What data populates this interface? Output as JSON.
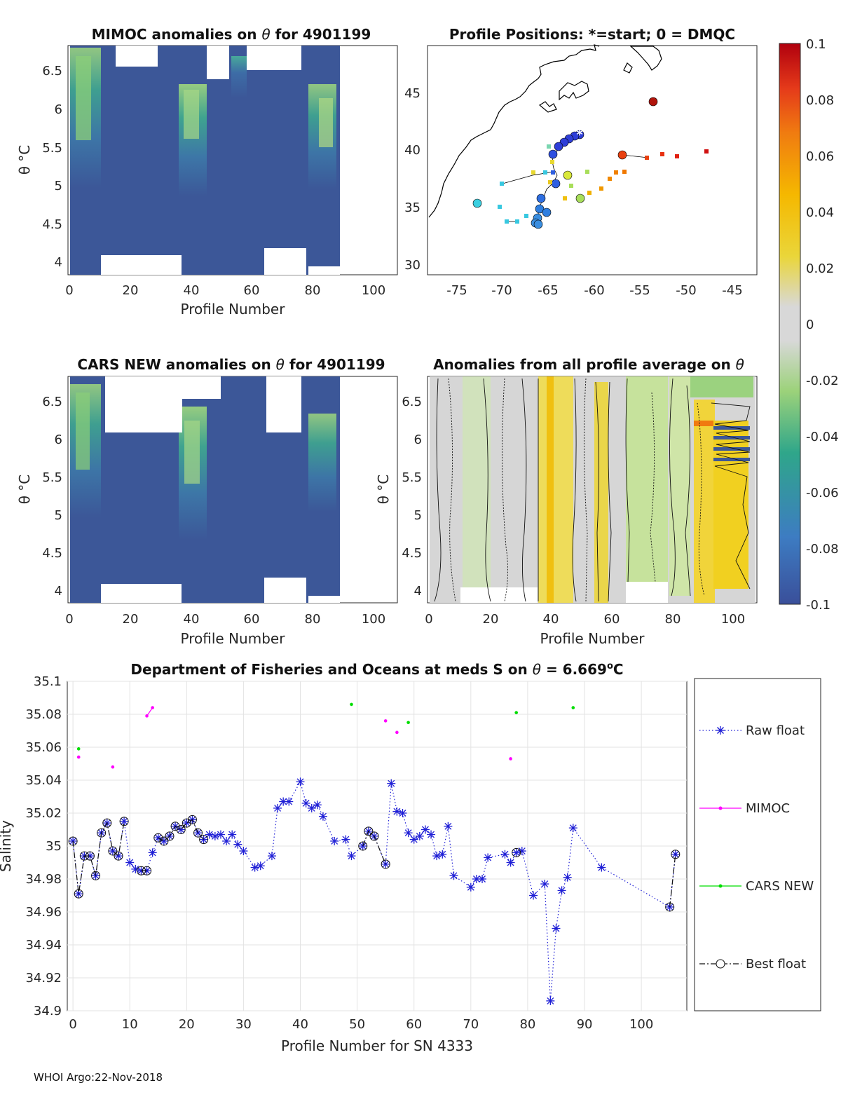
{
  "footer": "WHOI Argo:22-Nov-2018",
  "panels": {
    "mimoc": {
      "title_text": "MIMOC anomalies on ",
      "title_theta": "θ",
      "title_rest": " for 4901199",
      "xlabel": "Profile Number",
      "ylabel": "θ °C",
      "xticks": [
        "0",
        "20",
        "40",
        "60",
        "80",
        "100"
      ],
      "yticks": [
        "4",
        "4.5",
        "5",
        "5.5",
        "6",
        "6.5"
      ]
    },
    "positions": {
      "title": "Profile Positions: *=start; 0 = DMQC",
      "xticks": [
        "-75",
        "-70",
        "-65",
        "-60",
        "-55",
        "-50",
        "-45"
      ],
      "yticks": [
        "30",
        "35",
        "40",
        "45"
      ]
    },
    "cars": {
      "title_text": "CARS NEW anomalies on ",
      "title_theta": "θ",
      "title_rest": " for 4901199",
      "xlabel": "Profile Number",
      "ylabel": "θ °C",
      "xticks": [
        "0",
        "20",
        "40",
        "60",
        "80",
        "100"
      ],
      "yticks": [
        "4",
        "4.5",
        "5",
        "5.5",
        "6",
        "6.5"
      ]
    },
    "allavg": {
      "title_text": "Anomalies from all profile average on ",
      "title_theta": "θ",
      "xlabel": "Profile Number",
      "ylabel": "θ °C",
      "xticks": [
        "0",
        "20",
        "40",
        "60",
        "80",
        "100"
      ],
      "yticks": [
        "4",
        "4.5",
        "5",
        "5.5",
        "6",
        "6.5"
      ]
    }
  },
  "colorbar": {
    "ticks": [
      "0.1",
      "0.08",
      "0.06",
      "0.04",
      "0.02",
      "0",
      "-0.02",
      "-0.04",
      "-0.06",
      "-0.08",
      "-0.1"
    ]
  },
  "chart_data": {
    "type": "line",
    "title_prefix": "Department of Fisheries and Oceans at meds S on ",
    "title_theta": "θ",
    "title_value": " = 6.669",
    "title_sup": "o",
    "title_unit": "C",
    "xlabel": "Profile Number for SN 4333",
    "ylabel": "Salinity",
    "xlim": [
      -1,
      108
    ],
    "ylim": [
      34.9,
      35.1
    ],
    "xticks": [
      0,
      10,
      20,
      30,
      40,
      50,
      60,
      70,
      80,
      90,
      100
    ],
    "yticks": [
      34.9,
      34.92,
      34.94,
      34.96,
      34.98,
      35,
      35.02,
      35.04,
      35.06,
      35.08,
      35.1
    ],
    "grid": true,
    "legend": [
      "Raw float",
      "MIMOC",
      "CARS NEW",
      "Best float"
    ],
    "series": [
      {
        "name": "Raw float",
        "color": "#1f1fd6",
        "style": "dotted",
        "marker": "asterisk",
        "x": [
          0,
          1,
          2,
          3,
          4,
          5,
          6,
          7,
          8,
          9,
          10,
          11,
          12,
          13,
          14,
          15,
          16,
          17,
          18,
          19,
          20,
          21,
          22,
          23,
          24,
          25,
          26,
          27,
          28,
          29,
          30,
          32,
          33,
          35,
          36,
          37,
          38,
          40,
          41,
          42,
          43,
          44,
          46,
          48,
          49,
          51,
          52,
          53,
          55,
          56,
          57,
          58,
          59,
          60,
          61,
          62,
          63,
          64,
          65,
          66,
          67,
          70,
          71,
          72,
          73,
          76,
          77,
          78,
          79,
          81,
          83,
          84,
          85,
          86,
          87,
          88,
          93,
          105,
          106
        ],
        "y": [
          35.003,
          34.971,
          34.994,
          34.994,
          34.982,
          35.008,
          35.014,
          34.997,
          34.994,
          35.015,
          34.99,
          34.986,
          34.985,
          34.985,
          34.996,
          35.005,
          35.003,
          35.006,
          35.012,
          35.01,
          35.014,
          35.016,
          35.008,
          35.004,
          35.007,
          35.006,
          35.007,
          35.003,
          35.007,
          35.001,
          34.997,
          34.987,
          34.988,
          34.994,
          35.023,
          35.027,
          35.027,
          35.039,
          35.026,
          35.023,
          35.025,
          35.018,
          35.003,
          35.004,
          34.994,
          35.0,
          35.009,
          35.006,
          34.989,
          35.038,
          35.021,
          35.02,
          35.008,
          35.004,
          35.006,
          35.01,
          35.007,
          34.994,
          34.995,
          35.012,
          34.982,
          34.975,
          34.98,
          34.98,
          34.993,
          34.995,
          34.99,
          34.996,
          34.997,
          34.97,
          34.977,
          34.906,
          34.95,
          34.973,
          34.981,
          35.011,
          34.987,
          34.963,
          34.995
        ]
      },
      {
        "name": "MIMOC",
        "color": "#ff00ff",
        "style": "solid",
        "marker": "dot",
        "segments": [
          [
            [
              1,
              35.054
            ]
          ],
          [
            [
              7,
              35.048
            ]
          ],
          [
            [
              13,
              35.079
            ],
            [
              14,
              35.084
            ]
          ],
          [
            [
              55,
              35.076
            ]
          ],
          [
            [
              57,
              35.069
            ]
          ],
          [
            [
              77,
              35.053
            ]
          ]
        ]
      },
      {
        "name": "CARS NEW",
        "color": "#00dd00",
        "style": "solid",
        "marker": "dot",
        "segments": [
          [
            [
              1,
              35.059
            ]
          ],
          [
            [
              49,
              35.086
            ]
          ],
          [
            [
              59,
              35.075
            ]
          ],
          [
            [
              78,
              35.081
            ]
          ],
          [
            [
              88,
              35.084
            ]
          ]
        ]
      },
      {
        "name": "Best float",
        "color": "#111111",
        "style": "dashdot",
        "marker": "circle",
        "segments": [
          [
            [
              0,
              35.003
            ],
            [
              1,
              34.971
            ],
            [
              2,
              34.994
            ],
            [
              3,
              34.994
            ],
            [
              4,
              34.982
            ],
            [
              5,
              35.008
            ],
            [
              6,
              35.014
            ],
            [
              7,
              34.997
            ],
            [
              8,
              34.994
            ],
            [
              9,
              35.015
            ]
          ],
          [
            [
              12,
              34.985
            ],
            [
              13,
              34.985
            ]
          ],
          [
            [
              15,
              35.005
            ],
            [
              16,
              35.003
            ],
            [
              17,
              35.006
            ],
            [
              18,
              35.012
            ],
            [
              19,
              35.01
            ],
            [
              20,
              35.014
            ],
            [
              21,
              35.016
            ],
            [
              22,
              35.008
            ],
            [
              23,
              35.004
            ]
          ],
          [
            [
              51,
              35.0
            ],
            [
              52,
              35.009
            ],
            [
              53,
              35.006
            ],
            [
              55,
              34.989
            ]
          ],
          [
            [
              78,
              34.996
            ]
          ],
          [
            [
              105,
              34.963
            ],
            [
              106,
              34.995
            ]
          ]
        ]
      }
    ]
  }
}
